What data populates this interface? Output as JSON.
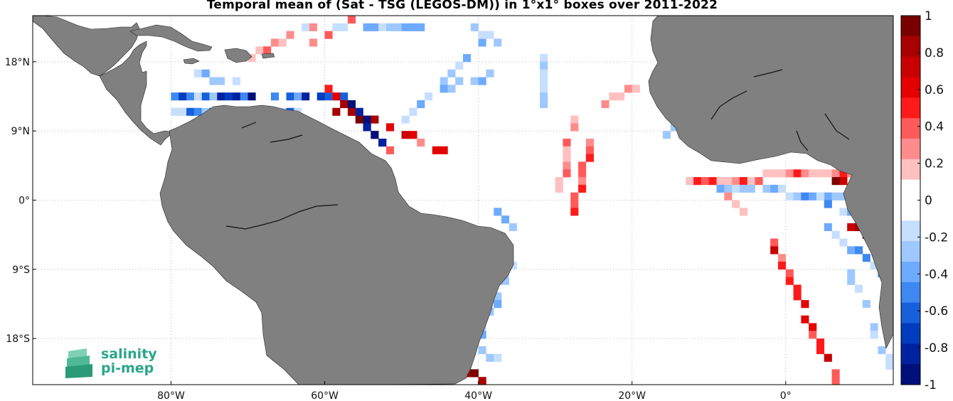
{
  "title": "Temporal mean of (Sat - TSG (LEGOS-DM)) in 1°x1° boxes over 2011-2022",
  "map": {
    "lon_range": [
      -98,
      14
    ],
    "lat_range": [
      -24,
      24
    ],
    "lon_ticks": [
      {
        "value": -80,
        "label": "80°W"
      },
      {
        "value": -60,
        "label": "60°W"
      },
      {
        "value": -40,
        "label": "40°W"
      },
      {
        "value": -20,
        "label": "20°W"
      },
      {
        "value": 0,
        "label": "0°"
      }
    ],
    "lat_ticks": [
      {
        "value": 18,
        "label": "18°N"
      },
      {
        "value": 9,
        "label": "9°N"
      },
      {
        "value": 0,
        "label": "0°"
      },
      {
        "value": -9,
        "label": "9°S"
      },
      {
        "value": -18,
        "label": "18°S"
      }
    ],
    "grid": true,
    "land_color": "#808080",
    "ocean_color": "#ffffff"
  },
  "colorbar": {
    "min": -1,
    "max": 1,
    "ticks": [
      "1",
      "0.8",
      "0.6",
      "0.4",
      "0.2",
      "0",
      "-0.2",
      "-0.4",
      "-0.6",
      "-0.8",
      "-1"
    ],
    "colors": [
      "#7a0000",
      "#a80000",
      "#c80000",
      "#e40000",
      "#ff1a1a",
      "#ff5a5a",
      "#ff8c8c",
      "#ffc0c0",
      "#ffffff",
      "#ffffff",
      "#c6deff",
      "#9ec8ff",
      "#6eaaff",
      "#3d88f2",
      "#1660dc",
      "#003cbf",
      "#0022a0",
      "#00107a"
    ]
  },
  "logo": {
    "line1": "salinity",
    "line2": "pi-mep",
    "color": "#2aa58a"
  }
}
